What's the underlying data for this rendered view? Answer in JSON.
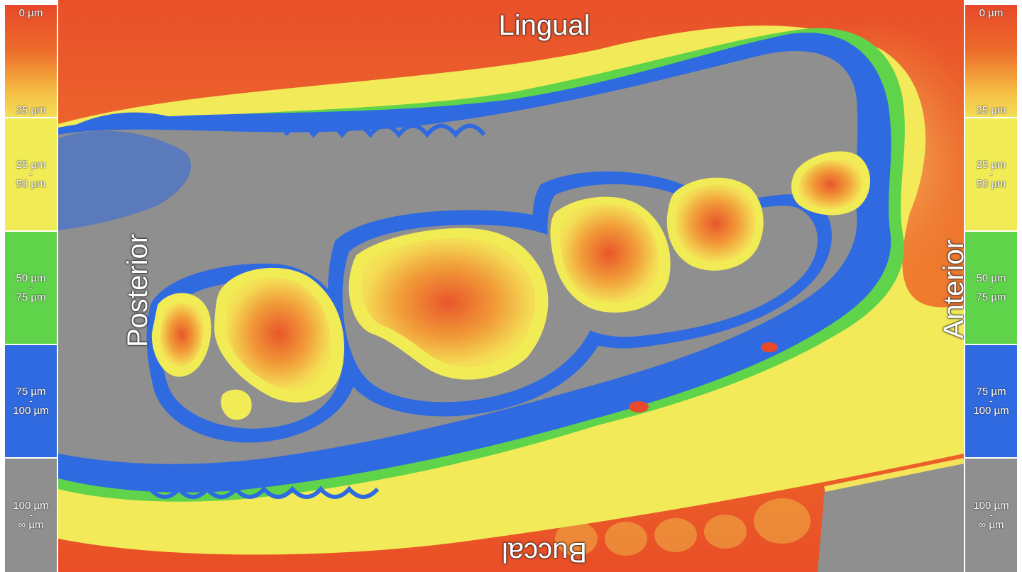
{
  "legend": {
    "bands": [
      {
        "top": "0 µm",
        "bottom": "25 µm",
        "color_top": "#e8492a",
        "color_bottom": "#f5e25a"
      },
      {
        "from": "25 µm",
        "dash": "-",
        "to": "50 µm",
        "color": "#f1ec55"
      },
      {
        "from": "50 µm",
        "dash": "-",
        "to": "75 µm",
        "color": "#5fd34a"
      },
      {
        "from": "75 µm",
        "dash": "-",
        "to": "100 µm",
        "color": "#2f6ae0"
      },
      {
        "from": "100 µm",
        "dash": "-",
        "to": "∞ µm",
        "color": "#8f8f8f"
      }
    ]
  },
  "orientation": {
    "lingual": "Lingual",
    "buccal": "Buccal",
    "posterior": "Posterior",
    "anterior": "Anterior"
  }
}
